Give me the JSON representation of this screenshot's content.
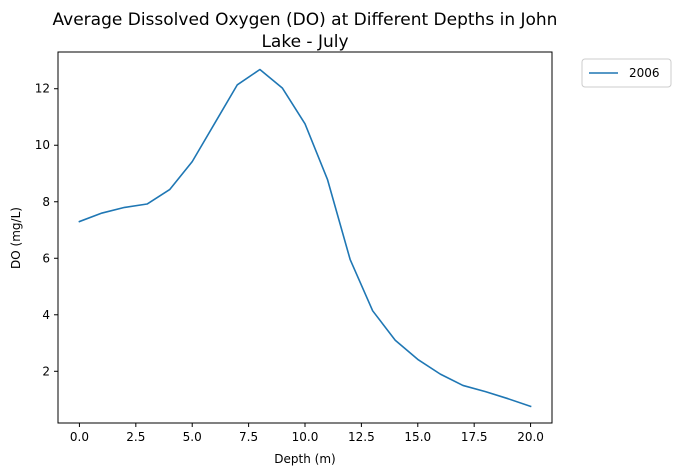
{
  "chart_data": {
    "type": "line",
    "title_lines": [
      "Average Dissolved Oxygen (DO) at Different Depths in John",
      "Lake - July"
    ],
    "xlabel": "Depth (m)",
    "ylabel": "DO (mg/L)",
    "xlim": [
      -0.95,
      20.95
    ],
    "ylim": [
      0.17,
      13.3
    ],
    "xticks": [
      0.0,
      2.5,
      5.0,
      7.5,
      10.0,
      12.5,
      15.0,
      17.5,
      20.0
    ],
    "xtick_labels": [
      "0.0",
      "2.5",
      "5.0",
      "7.5",
      "10.0",
      "12.5",
      "15.0",
      "17.5",
      "20.0"
    ],
    "yticks": [
      2,
      4,
      6,
      8,
      10,
      12
    ],
    "ytick_labels": [
      "2",
      "4",
      "6",
      "8",
      "10",
      "12"
    ],
    "grid": false,
    "legend_position": "outside-top-right",
    "series": [
      {
        "name": "2006",
        "color": "#1f77b4",
        "x": [
          0,
          1,
          2,
          3,
          4,
          5,
          6,
          7,
          8,
          9,
          10,
          11,
          12,
          13,
          14,
          15,
          16,
          17,
          18,
          19,
          20
        ],
        "y": [
          7.3,
          7.6,
          7.8,
          7.92,
          8.43,
          9.42,
          10.78,
          12.14,
          12.68,
          12.02,
          10.76,
          8.78,
          5.96,
          4.14,
          3.1,
          2.42,
          1.9,
          1.5,
          1.28,
          1.03,
          0.76
        ]
      }
    ]
  }
}
